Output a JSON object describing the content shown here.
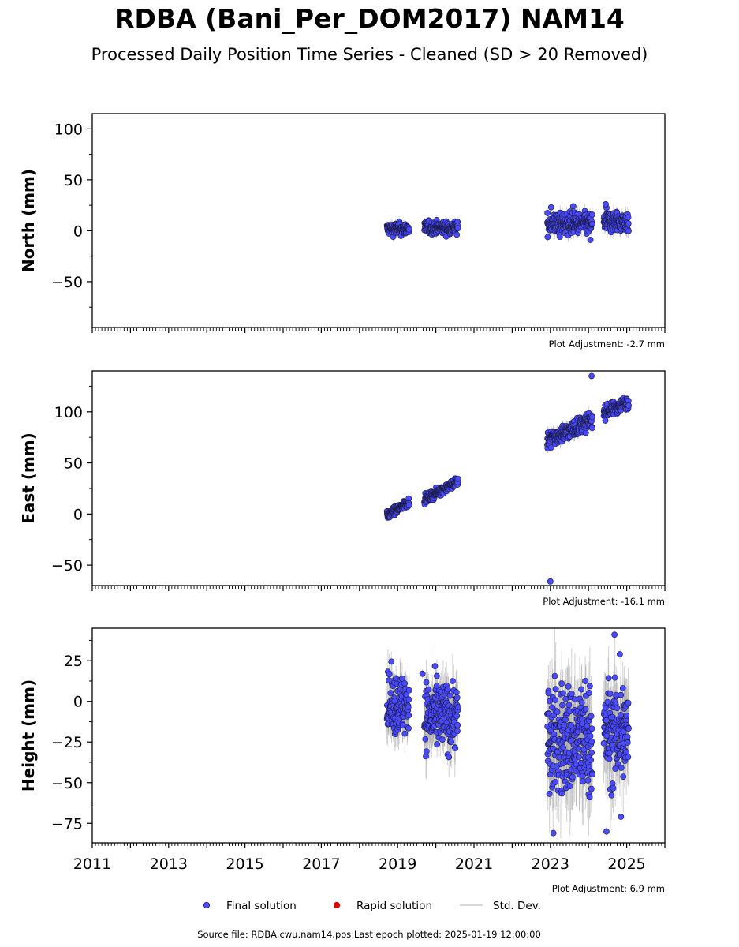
{
  "title": "RDBA (Bani_Per_DOM2017) NAM14",
  "subtitle": "Processed Daily Position Time Series - Cleaned (SD > 20 Removed)",
  "chart_data": [
    {
      "type": "scatter",
      "ylabel": "North (mm)",
      "xlim": [
        2011.0,
        2026.0
      ],
      "ylim": [
        -95,
        115
      ],
      "yticks": [
        100,
        50,
        0,
        -50
      ],
      "ytick_labels": [
        "100",
        "50",
        "0",
        "−50"
      ],
      "adjustment_text": "Plot Adjustment: -2.7 mm",
      "series": [
        {
          "name": "Final solution",
          "color": "#4a4aff",
          "segments": [
            {
              "x": [
                2018.72,
                2019.3
              ],
              "y_center": 2,
              "y_spread": 3
            },
            {
              "x": [
                2019.7,
                2020.58
              ],
              "y_center": 3,
              "y_spread": 3
            },
            {
              "x": [
                2022.92,
                2024.1
              ],
              "y_center": 7,
              "y_spread": 5
            },
            {
              "x": [
                2024.4,
                2025.05
              ],
              "y_center": 9,
              "y_spread": 5
            }
          ],
          "outliers": [
            {
              "x": 2023.02,
              "y": 23
            },
            {
              "x": 2023.25,
              "y": -6
            },
            {
              "x": 2023.6,
              "y": 24
            },
            {
              "x": 2024.05,
              "y": -9
            },
            {
              "x": 2024.45,
              "y": 26
            }
          ]
        }
      ]
    },
    {
      "type": "scatter",
      "ylabel": "East (mm)",
      "xlim": [
        2011.0,
        2026.0
      ],
      "ylim": [
        -70,
        140
      ],
      "yticks": [
        100,
        50,
        0,
        -50
      ],
      "ytick_labels": [
        "100",
        "50",
        "0",
        "−50"
      ],
      "adjustment_text": "Plot Adjustment: -16.1 mm",
      "series": [
        {
          "name": "Final solution",
          "color": "#4a4aff",
          "segments": [
            {
              "x": [
                2018.72,
                2019.3
              ],
              "y_start": -2,
              "y_end": 12,
              "y_spread": 2
            },
            {
              "x": [
                2019.7,
                2020.58
              ],
              "y_start": 14,
              "y_end": 32,
              "y_spread": 2
            },
            {
              "x": [
                2022.92,
                2024.1
              ],
              "y_start": 72,
              "y_end": 92,
              "y_spread": 4
            },
            {
              "x": [
                2024.4,
                2025.05
              ],
              "y_start": 99,
              "y_end": 110,
              "y_spread": 3
            }
          ],
          "outliers": [
            {
              "x": 2023.0,
              "y": -66
            },
            {
              "x": 2024.08,
              "y": 135
            },
            {
              "x": 2023.02,
              "y": 65
            }
          ]
        }
      ]
    },
    {
      "type": "scatter",
      "ylabel": "Height (mm)",
      "xlim": [
        2011.0,
        2026.0
      ],
      "ylim": [
        -87,
        45
      ],
      "yticks": [
        25,
        0,
        -25,
        -50,
        -75
      ],
      "ytick_labels": [
        "25",
        "0",
        "−25",
        "−50",
        "−75"
      ],
      "xtick_labels": [
        "2011",
        "2013",
        "2015",
        "2017",
        "2019",
        "2021",
        "2023",
        "2025"
      ],
      "adjustment_text": "Plot Adjustment: 6.9 mm",
      "series": [
        {
          "name": "Final solution",
          "color": "#4a4aff",
          "segments": [
            {
              "x": [
                2018.72,
                2019.3
              ],
              "y_center": -2,
              "y_spread": 9
            },
            {
              "x": [
                2019.7,
                2020.58
              ],
              "y_center": -9,
              "y_spread": 10
            },
            {
              "x": [
                2022.92,
                2024.1
              ],
              "y_center": -24,
              "y_spread": 17
            },
            {
              "x": [
                2024.4,
                2025.05
              ],
              "y_center": -20,
              "y_spread": 15
            }
          ],
          "outliers": [
            {
              "x": 2019.65,
              "y": 17
            },
            {
              "x": 2023.08,
              "y": -81
            },
            {
              "x": 2024.47,
              "y": -80
            },
            {
              "x": 2024.68,
              "y": 41
            },
            {
              "x": 2024.82,
              "y": 29
            },
            {
              "x": 2024.85,
              "y": -71
            },
            {
              "x": 2022.95,
              "y": 5
            }
          ]
        }
      ]
    }
  ],
  "legend": {
    "items": [
      {
        "label": "Final solution",
        "color": "#4a4aff",
        "kind": "dot"
      },
      {
        "label": "Rapid solution",
        "color": "#e00000",
        "kind": "dot"
      },
      {
        "label": "Std. Dev.",
        "color": "#cccccc",
        "kind": "line"
      }
    ]
  },
  "footer": "Source file: RDBA.cwu.nam14.pos  Last epoch plotted: 2025-01-19 12:00:00"
}
